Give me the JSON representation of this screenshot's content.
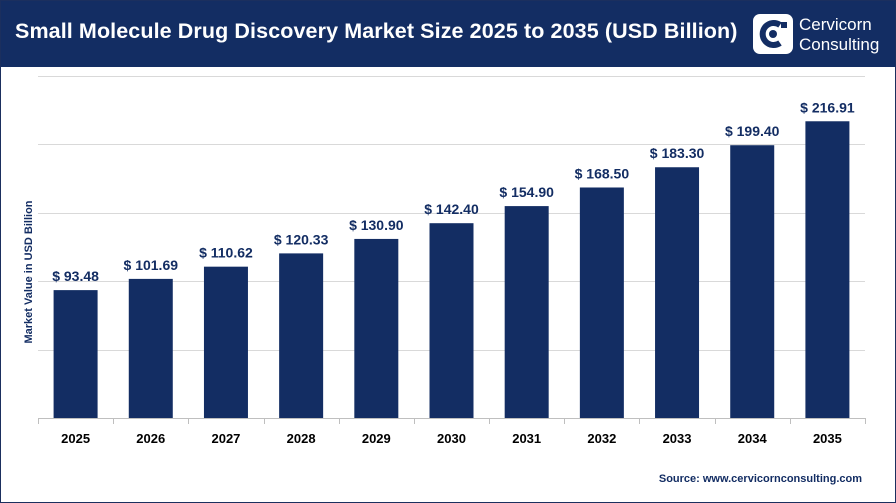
{
  "header": {
    "title": "Small Molecule Drug Discovery Market Size 2025 to 2035 (USD Billion)",
    "background_color": "#132d63"
  },
  "logo": {
    "line1": "Cervicorn",
    "line2": "Consulting"
  },
  "source": "Source: www.cervicornconsulting.com",
  "chart_data": {
    "type": "bar",
    "categories": [
      "2025",
      "2026",
      "2027",
      "2028",
      "2029",
      "2030",
      "2031",
      "2032",
      "2033",
      "2034",
      "2035"
    ],
    "values": [
      93.48,
      101.69,
      110.62,
      120.33,
      130.9,
      142.4,
      154.9,
      168.5,
      183.3,
      199.4,
      216.91
    ],
    "data_labels": [
      "$ 93.48",
      "$ 101.69",
      "$ 110.62",
      "$ 120.33",
      "$ 130.90",
      "$ 142.40",
      "$ 154.90",
      "$ 168.50",
      "$ 183.30",
      "$ 199.40",
      "$ 216.91"
    ],
    "title": "Small Molecule Drug Discovery Market Size 2025 to 2035 (USD Billion)",
    "xlabel": "",
    "ylabel": "Market Value in USD Billion",
    "ylim": [
      0,
      250
    ],
    "y_tick_labels_visible": false,
    "grid": true,
    "legend": "none",
    "bar_color": "#132d63",
    "label_color": "#132d63"
  }
}
